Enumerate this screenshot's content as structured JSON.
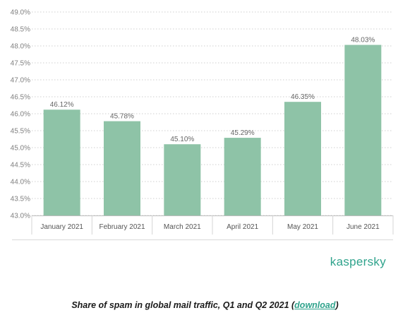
{
  "brand": "kaspersky",
  "caption": {
    "text": "Share of spam in global mail traffic, Q1 and Q2 2021 (",
    "link": "download",
    "close": ")"
  },
  "colors": {
    "bar": "#8ec3a7",
    "brand": "#2fa38c"
  },
  "chart_data": {
    "type": "bar",
    "title": "",
    "xlabel": "",
    "ylabel": "",
    "categories": [
      "January 2021",
      "February 2021",
      "March 2021",
      "April 2021",
      "May 2021",
      "June 2021"
    ],
    "values": [
      46.12,
      45.78,
      45.1,
      45.29,
      46.35,
      48.03
    ],
    "data_labels": [
      "46.12%",
      "45.78%",
      "45.10%",
      "45.29%",
      "46.35%",
      "48.03%"
    ],
    "yticks": [
      43.0,
      43.5,
      44.0,
      44.5,
      45.0,
      45.5,
      46.0,
      46.5,
      47.0,
      47.5,
      48.0,
      48.5,
      49.0
    ],
    "ytick_labels": [
      "43.0%",
      "43.5%",
      "44.0%",
      "44.5%",
      "45.0%",
      "45.5%",
      "46.0%",
      "46.5%",
      "47.0%",
      "47.5%",
      "48.0%",
      "48.5%",
      "49.0%"
    ],
    "ylim": [
      43.0,
      49.0
    ],
    "grid": true,
    "legend": "none"
  }
}
